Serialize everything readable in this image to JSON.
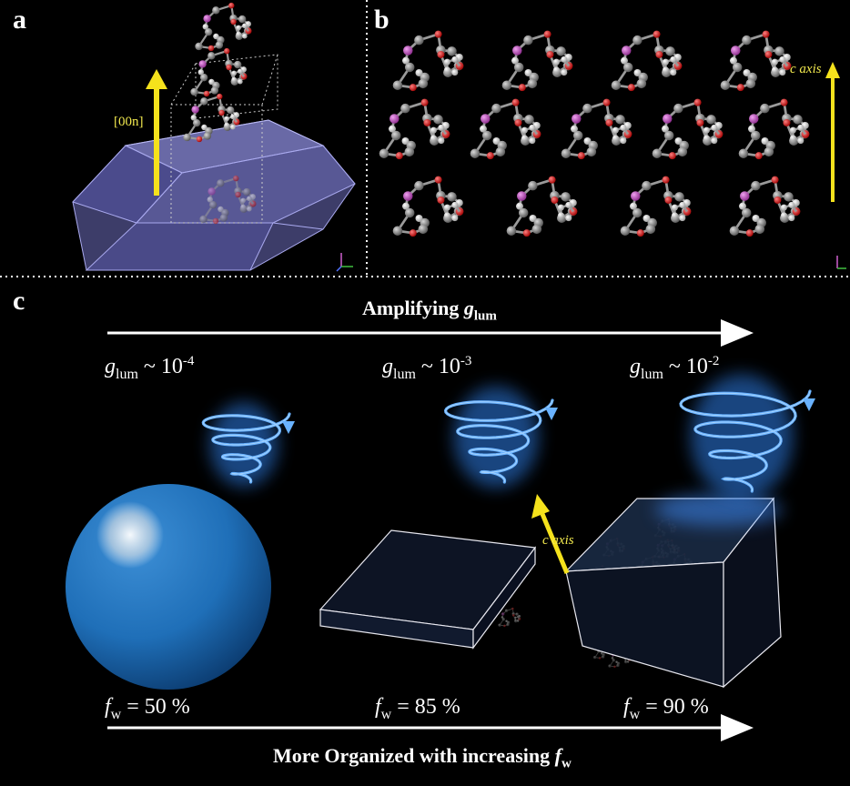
{
  "panels": {
    "a": {
      "letter": "a",
      "arrow_label": "[00n]"
    },
    "b": {
      "letter": "b",
      "arrow_label": "c axis"
    },
    "c": {
      "letter": "c"
    }
  },
  "top_banner": {
    "text_prefix": "Amplifying ",
    "g": "g",
    "sub": "lum"
  },
  "bottom_banner": {
    "text_prefix": "More Organized with increasing ",
    "f": "f",
    "sub": "w"
  },
  "stages": [
    {
      "g_sub": "lum",
      "g_value": "~ 10",
      "g_exp": "-4",
      "f_sub": "w",
      "f_value": "= 50 %"
    },
    {
      "g_sub": "lum",
      "g_value": "~ 10",
      "g_exp": "-3",
      "f_sub": "w",
      "f_value": "= 85 %"
    },
    {
      "g_sub": "lum",
      "g_value": "~ 10",
      "g_exp": "-2",
      "f_sub": "w",
      "f_value": "= 90 %"
    }
  ],
  "c_axis_label": "c axis",
  "colors": {
    "arrow_yellow": "#f5e21c",
    "glow_blue": "#4aa3ff",
    "sphere_blue": "#1f6fb8",
    "crystal_purple": "#7f7fd0"
  }
}
